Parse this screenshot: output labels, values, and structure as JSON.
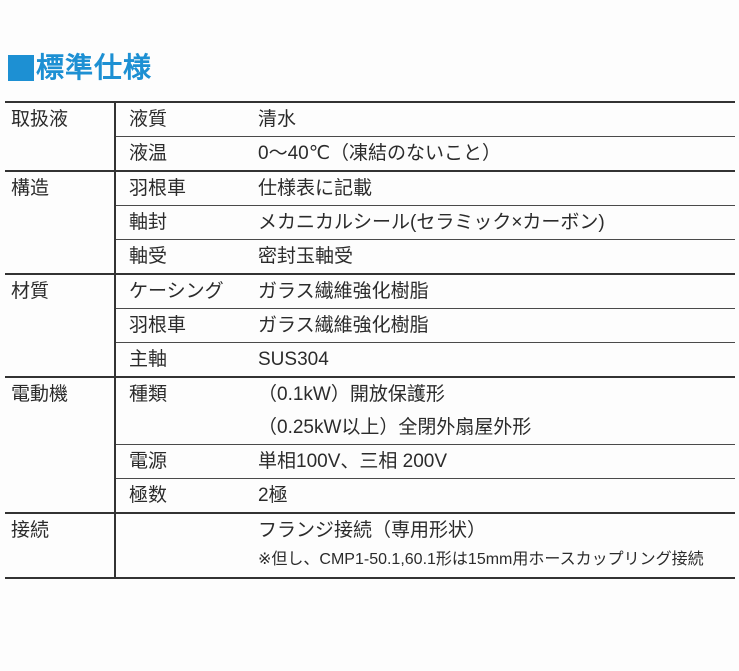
{
  "title": {
    "text": "標準仕様",
    "accent_color": "#1d90d3"
  },
  "table": {
    "columns": [
      "category",
      "item",
      "value"
    ],
    "groups": [
      {
        "category": "取扱液",
        "rows": [
          {
            "label": "液質",
            "value_lines": [
              "清水"
            ]
          },
          {
            "label": "液温",
            "value_lines": [
              "0〜40℃（凍結のないこと）"
            ]
          }
        ]
      },
      {
        "category": "構造",
        "rows": [
          {
            "label": "羽根車",
            "value_lines": [
              "仕様表に記載"
            ]
          },
          {
            "label": "軸封",
            "value_lines": [
              "メカニカルシール(セラミック×カーボン)"
            ]
          },
          {
            "label": "軸受",
            "value_lines": [
              "密封玉軸受"
            ]
          }
        ]
      },
      {
        "category": "材質",
        "rows": [
          {
            "label": "ケーシング",
            "value_lines": [
              "ガラス繊維強化樹脂"
            ]
          },
          {
            "label": "羽根車",
            "value_lines": [
              "ガラス繊維強化樹脂"
            ]
          },
          {
            "label": "主軸",
            "value_lines": [
              "SUS304"
            ]
          }
        ]
      },
      {
        "category": "電動機",
        "rows": [
          {
            "label": "種類",
            "value_lines": [
              "（0.1kW）開放保護形",
              "（0.25kW以上）全閉外扇屋外形"
            ]
          },
          {
            "label": "電源",
            "value_lines": [
              "単相100V、三相 200V"
            ]
          },
          {
            "label": "極数",
            "value_lines": [
              "2極"
            ]
          }
        ]
      },
      {
        "category": "接続",
        "rows": [
          {
            "label": "",
            "value_lines": [
              "フランジ接続（専用形状）"
            ],
            "note": "※但し、CMP1-50.1,60.1形は15mm用ホースカップリング接続"
          }
        ]
      }
    ]
  }
}
